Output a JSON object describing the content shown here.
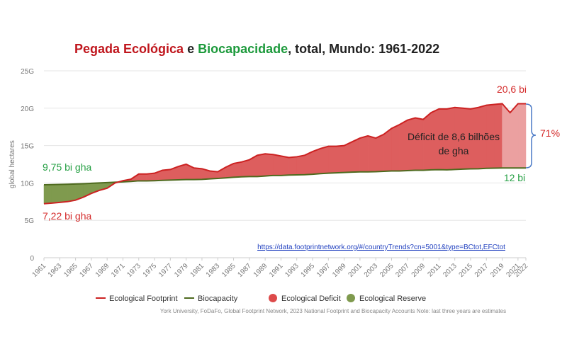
{
  "title": {
    "part1": "Pegada Ecológica",
    "part2": " e ",
    "part3": "Biocapacidade",
    "part4": ", total, Mundo: 1961-2022"
  },
  "colors": {
    "footprint": "#cc2222",
    "biocapacity": "#4e6a1e",
    "deficit": "#dd5e5e",
    "reserve": "#7f9a4e",
    "estimate": "#eba0a0",
    "title_red": "#c0161d",
    "title_green": "#1d9a3c",
    "annot_red": "#d42a2a",
    "annot_green": "#27a045",
    "bracket": "#4a79c6"
  },
  "annotations": {
    "bio_start": "9,75 bi gha",
    "fp_start": "7,22 bi gha",
    "fp_end": "20,6 bi",
    "bio_end": "12 bi",
    "deficit_line1": "Déficit de 8,6 bilhões",
    "deficit_line2": "de gha",
    "percent": "71%"
  },
  "source_link": "https://data.footprintnetwork.org/#/countryTrends?cn=5001&type=BCtot,EFCtot",
  "footnote": "York University, FoDaFo, Global Footprint Network, 2023 National Footprint and Biocapacity Accounts Note: last three years are estimates",
  "legend": [
    {
      "label": "Ecological Footprint",
      "shape": "line",
      "color": "#cc2222"
    },
    {
      "label": "Biocapacity",
      "shape": "line",
      "color": "#4e6a1e"
    },
    {
      "label": "Ecological Deficit",
      "shape": "circle",
      "color": "#dd4a4a"
    },
    {
      "label": "Ecological Reserve",
      "shape": "circle",
      "color": "#7f9a4e"
    }
  ],
  "chart_data": {
    "type": "area",
    "ylabel": "global hectares",
    "ylim": [
      0,
      25
    ],
    "yticks": [
      0,
      5,
      10,
      15,
      20,
      25
    ],
    "ytick_labels": [
      "0",
      "5G",
      "10G",
      "15G",
      "20G",
      "25G"
    ],
    "xlim": [
      1961,
      2022
    ],
    "xticks": [
      1961,
      1963,
      1965,
      1967,
      1969,
      1971,
      1973,
      1975,
      1977,
      1979,
      1981,
      1983,
      1985,
      1987,
      1989,
      1991,
      1993,
      1995,
      1997,
      1999,
      2001,
      2003,
      2005,
      2007,
      2009,
      2011,
      2013,
      2015,
      2017,
      2019,
      2021,
      2022
    ],
    "grid": true,
    "estimate_years": [
      2020,
      2021,
      2022
    ],
    "series": [
      {
        "name": "Ecological Footprint",
        "x": [
          1961,
          1962,
          1963,
          1964,
          1965,
          1966,
          1967,
          1968,
          1969,
          1970,
          1971,
          1972,
          1973,
          1974,
          1975,
          1976,
          1977,
          1978,
          1979,
          1980,
          1981,
          1982,
          1983,
          1984,
          1985,
          1986,
          1987,
          1988,
          1989,
          1990,
          1991,
          1992,
          1993,
          1994,
          1995,
          1996,
          1997,
          1998,
          1999,
          2000,
          2001,
          2002,
          2003,
          2004,
          2005,
          2006,
          2007,
          2008,
          2009,
          2010,
          2011,
          2012,
          2013,
          2014,
          2015,
          2016,
          2017,
          2018,
          2019,
          2020,
          2021,
          2022
        ],
        "values": [
          7.22,
          7.3,
          7.4,
          7.5,
          7.7,
          8.1,
          8.6,
          9.0,
          9.3,
          10.0,
          10.3,
          10.5,
          11.2,
          11.2,
          11.3,
          11.7,
          11.8,
          12.2,
          12.5,
          12.0,
          11.9,
          11.6,
          11.5,
          12.1,
          12.6,
          12.8,
          13.1,
          13.7,
          13.9,
          13.8,
          13.6,
          13.4,
          13.5,
          13.7,
          14.2,
          14.6,
          14.9,
          14.9,
          15.0,
          15.5,
          16.0,
          16.3,
          16.0,
          16.5,
          17.3,
          17.8,
          18.4,
          18.7,
          18.5,
          19.4,
          19.9,
          19.9,
          20.1,
          20.0,
          19.9,
          20.1,
          20.4,
          20.5,
          20.6,
          19.4,
          20.6,
          20.6
        ]
      },
      {
        "name": "Biocapacity",
        "x": [
          1961,
          1962,
          1963,
          1964,
          1965,
          1966,
          1967,
          1968,
          1969,
          1970,
          1971,
          1972,
          1973,
          1974,
          1975,
          1976,
          1977,
          1978,
          1979,
          1980,
          1981,
          1982,
          1983,
          1984,
          1985,
          1986,
          1987,
          1988,
          1989,
          1990,
          1991,
          1992,
          1993,
          1994,
          1995,
          1996,
          1997,
          1998,
          1999,
          2000,
          2001,
          2002,
          2003,
          2004,
          2005,
          2006,
          2007,
          2008,
          2009,
          2010,
          2011,
          2012,
          2013,
          2014,
          2015,
          2016,
          2017,
          2018,
          2019,
          2020,
          2021,
          2022
        ],
        "values": [
          9.75,
          9.78,
          9.8,
          9.83,
          9.86,
          9.9,
          9.95,
          10.0,
          10.05,
          10.1,
          10.15,
          10.2,
          10.28,
          10.28,
          10.3,
          10.34,
          10.38,
          10.42,
          10.45,
          10.45,
          10.48,
          10.55,
          10.6,
          10.68,
          10.76,
          10.82,
          10.86,
          10.86,
          10.93,
          11.0,
          11.0,
          11.05,
          11.08,
          11.1,
          11.16,
          11.25,
          11.3,
          11.35,
          11.4,
          11.45,
          11.48,
          11.48,
          11.5,
          11.55,
          11.6,
          11.6,
          11.65,
          11.7,
          11.7,
          11.75,
          11.78,
          11.75,
          11.8,
          11.85,
          11.88,
          11.9,
          11.95,
          11.98,
          12.0,
          12.0,
          12.0,
          12.0
        ]
      }
    ]
  }
}
